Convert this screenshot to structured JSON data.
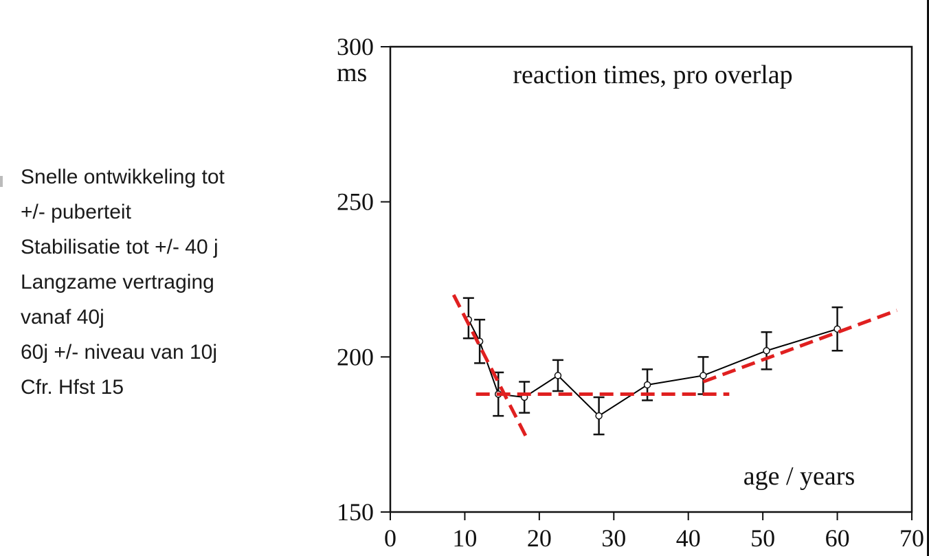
{
  "notes": [
    "Snelle ontwikkeling tot",
    "+/- puberteit",
    "Stabilisatie tot +/- 40 j",
    "Langzame vertraging",
    "vanaf 40j",
    "60j +/- niveau van 10j",
    "Cfr. Hfst 15"
  ],
  "chart_data": {
    "type": "line",
    "title": "reaction times, pro overlap",
    "xlabel": "age / years",
    "ylabel": "ms",
    "xlim": [
      0,
      70
    ],
    "ylim": [
      150,
      300
    ],
    "x_ticks": [
      "0",
      "10",
      "20",
      "30",
      "40",
      "50",
      "60",
      "70"
    ],
    "y_ticks": [
      "150",
      "200",
      "250",
      "300"
    ],
    "grid": false,
    "series": [
      {
        "x": [
          10.5,
          12,
          14.5,
          18,
          22.5,
          28,
          34.5,
          42,
          50.5,
          60
        ],
        "y": [
          212,
          205,
          188,
          187,
          194,
          181,
          191,
          194,
          202,
          209
        ],
        "err_low": [
          206,
          198,
          181,
          182,
          189,
          175,
          186,
          188,
          196,
          202
        ],
        "err_high": [
          219,
          212,
          195,
          192,
          199,
          187,
          196,
          200,
          208,
          216
        ],
        "color": "#000000"
      }
    ],
    "trend_lines": [
      {
        "x": [
          8.5,
          18.5
        ],
        "y": [
          220,
          173
        ],
        "color": "#e02020",
        "style": "dashed"
      },
      {
        "x": [
          11.5,
          45.5
        ],
        "y": [
          188,
          188
        ],
        "color": "#e02020",
        "style": "dashed"
      },
      {
        "x": [
          42,
          68
        ],
        "y": [
          192,
          215
        ],
        "color": "#e02020",
        "style": "dashed"
      }
    ]
  }
}
